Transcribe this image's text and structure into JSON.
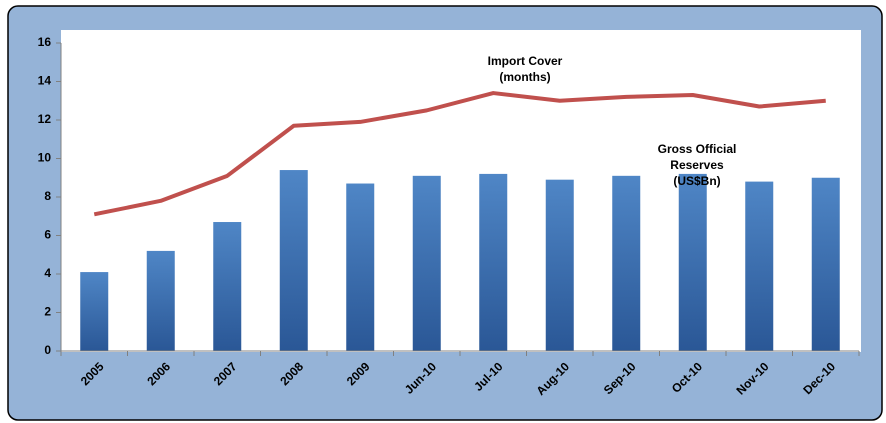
{
  "chart_data": {
    "type": "bar-line",
    "categories": [
      "2005",
      "2006",
      "2007",
      "2008",
      "2009",
      "Jun-10",
      "Jul-10",
      "Aug-10",
      "Sep-10",
      "Oct-10",
      "Nov-10",
      "Dec-10"
    ],
    "series": [
      {
        "name": "Gross Official Reserves (US$Bn)",
        "type": "bar",
        "color": "#3a6eb0",
        "values": [
          4.1,
          5.2,
          6.7,
          9.4,
          8.7,
          9.1,
          9.2,
          8.9,
          9.1,
          9.2,
          8.8,
          9.0
        ]
      },
      {
        "name": "Import Cover (months)",
        "type": "line",
        "color": "#c0504d",
        "values": [
          7.1,
          7.8,
          9.1,
          11.7,
          11.9,
          12.5,
          13.4,
          13.0,
          13.2,
          13.3,
          12.7,
          13.0
        ]
      }
    ],
    "annotations": [
      [
        "Import Cover",
        "(months)"
      ],
      [
        "Gross Official",
        "Reserves",
        "(US$Bn)"
      ]
    ],
    "ylim": [
      0,
      16
    ],
    "yticks": [
      0,
      2,
      4,
      6,
      8,
      10,
      12,
      14,
      16
    ]
  }
}
